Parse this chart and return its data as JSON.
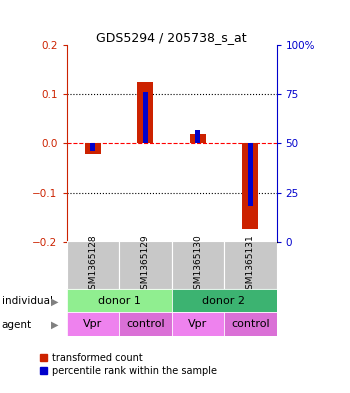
{
  "title": "GDS5294 / 205738_s_at",
  "samples": [
    "GSM1365128",
    "GSM1365129",
    "GSM1365130",
    "GSM1365131"
  ],
  "red_values": [
    -0.022,
    0.125,
    0.02,
    -0.175
  ],
  "blue_percentiles": [
    46,
    76,
    57,
    18
  ],
  "ylim_left": [
    -0.2,
    0.2
  ],
  "ylim_right": [
    0,
    100
  ],
  "yticks_left": [
    -0.2,
    -0.1,
    0.0,
    0.1,
    0.2
  ],
  "yticks_right": [
    0,
    25,
    50,
    75,
    100
  ],
  "ytick_labels_right": [
    "0",
    "25",
    "50",
    "75",
    "100%"
  ],
  "individual_labels": [
    "donor 1",
    "donor 2"
  ],
  "agent_labels": [
    "Vpr",
    "control",
    "Vpr",
    "control"
  ],
  "individual_color1": "#90EE90",
  "individual_color2": "#3CB371",
  "agent_color_vpr": "#EE82EE",
  "agent_color_control": "#DA70D6",
  "sample_box_color": "#C8C8C8",
  "red_color": "#CC2200",
  "blue_color": "#0000CC",
  "red_bar_width": 0.3,
  "blue_bar_width": 0.1,
  "legend_red": "transformed count",
  "legend_blue": "percentile rank within the sample"
}
